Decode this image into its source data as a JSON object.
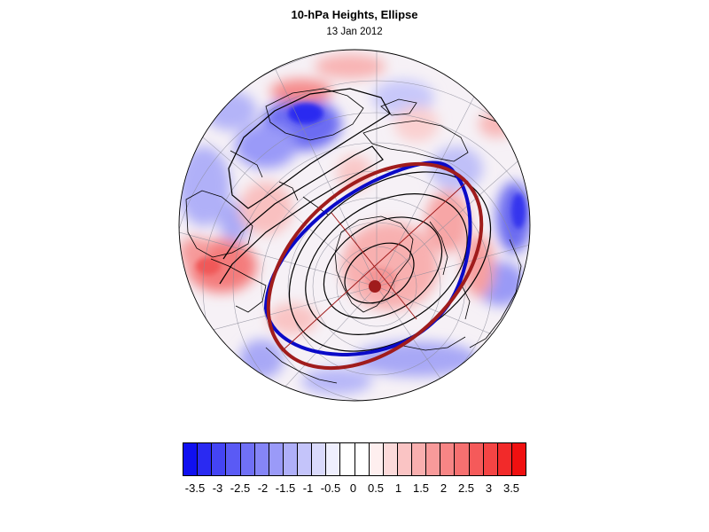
{
  "title": "10-hPa Heights, Ellipse",
  "subtitle": "13 Jan 2012",
  "colorbar": {
    "colors": [
      "#1010f0",
      "#2a2af2",
      "#4444f4",
      "#5a5af5",
      "#7070f6",
      "#8585f7",
      "#9a9af8",
      "#afaff9",
      "#c4c4fa",
      "#dadafc",
      "#efeffe",
      "#ffffff",
      "#ffffff",
      "#feefef",
      "#fcdada",
      "#fac4c4",
      "#f9afaf",
      "#f89a9a",
      "#f78585",
      "#f67070",
      "#f55a5a",
      "#f44444",
      "#f22a2a",
      "#f01010"
    ],
    "labels": [
      "-3.5",
      "-3",
      "-2.5",
      "-2",
      "-1.5",
      "-1",
      "-0.5",
      "0",
      "0.5",
      "1",
      "1.5",
      "2",
      "2.5",
      "3",
      "3.5"
    ]
  },
  "map": {
    "projection": "north-polar-orthographic",
    "field": "10-hPa height anomaly (standardized)",
    "ellipse_fit": {
      "color": "#a01c1c",
      "center_marker": true
    },
    "reference_contour_color": "#0a0ac8",
    "contour_color": "#000000",
    "graticule": "gray"
  }
}
